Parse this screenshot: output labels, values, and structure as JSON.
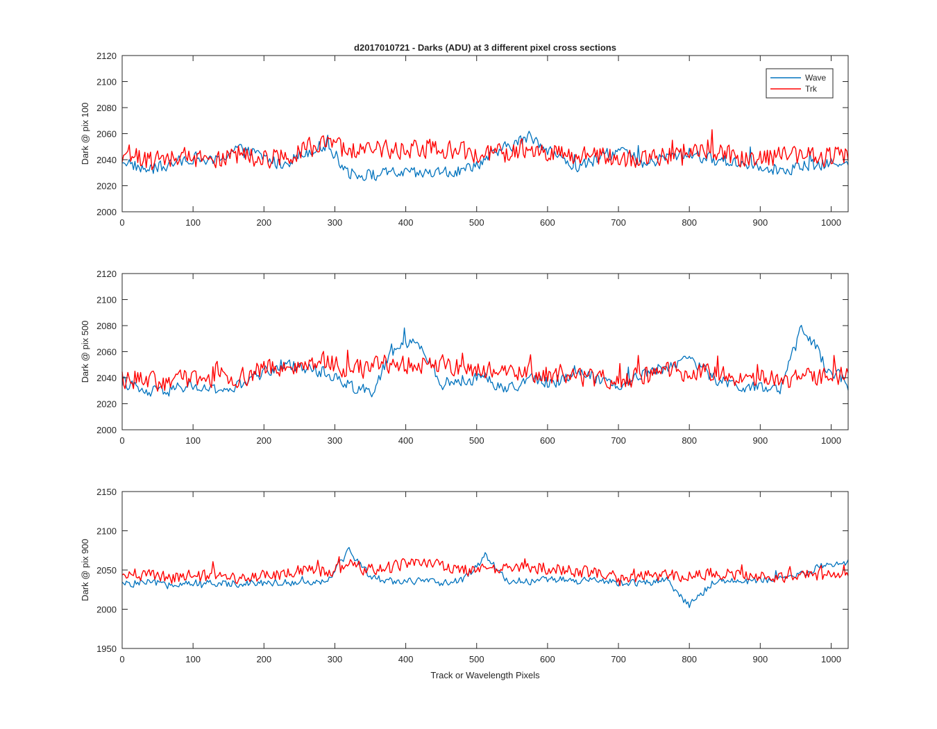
{
  "figure": {
    "title": "d2017010721 - Darks (ADU) at 3 different pixel cross sections",
    "xlabel": "Track or Wavelength Pixels",
    "legend": [
      "Wave",
      "Trk"
    ],
    "colors": {
      "Wave": "#0072BD",
      "Trk": "#FF0000"
    }
  },
  "chart_data": [
    {
      "type": "line",
      "ylabel": "Dark @ pix 100",
      "xlim": [
        0,
        1024
      ],
      "ylim": [
        2000,
        2120
      ],
      "xticks": [
        0,
        100,
        200,
        300,
        400,
        500,
        600,
        700,
        800,
        900,
        1000
      ],
      "yticks": [
        2000,
        2020,
        2040,
        2060,
        2080,
        2100,
        2120
      ],
      "legend_position": "top-right",
      "series": [
        {
          "name": "Wave",
          "x": [
            0,
            32,
            64,
            96,
            128,
            160,
            192,
            224,
            256,
            288,
            320,
            352,
            384,
            416,
            448,
            480,
            512,
            544,
            576,
            608,
            640,
            672,
            704,
            736,
            768,
            800,
            832,
            864,
            896,
            928,
            960,
            992,
            1024
          ],
          "values": [
            2040,
            2032,
            2035,
            2042,
            2038,
            2048,
            2044,
            2036,
            2045,
            2052,
            2030,
            2028,
            2030,
            2029,
            2030,
            2031,
            2040,
            2050,
            2058,
            2045,
            2034,
            2040,
            2048,
            2036,
            2042,
            2045,
            2040,
            2038,
            2036,
            2032,
            2035,
            2036,
            2040
          ]
        },
        {
          "name": "Trk",
          "x": [
            0,
            32,
            64,
            96,
            128,
            160,
            192,
            224,
            256,
            288,
            320,
            352,
            384,
            416,
            448,
            480,
            512,
            544,
            576,
            608,
            640,
            672,
            704,
            736,
            768,
            800,
            832,
            864,
            896,
            928,
            960,
            992,
            1024
          ],
          "values": [
            2045,
            2040,
            2042,
            2044,
            2040,
            2043,
            2041,
            2042,
            2048,
            2052,
            2046,
            2050,
            2046,
            2050,
            2048,
            2046,
            2044,
            2046,
            2050,
            2045,
            2042,
            2043,
            2040,
            2041,
            2044,
            2046,
            2045,
            2043,
            2041,
            2042,
            2044,
            2042,
            2044
          ]
        }
      ]
    },
    {
      "type": "line",
      "ylabel": "Dark @ pix 500",
      "xlim": [
        0,
        1024
      ],
      "ylim": [
        2000,
        2120
      ],
      "xticks": [
        0,
        100,
        200,
        300,
        400,
        500,
        600,
        700,
        800,
        900,
        1000
      ],
      "yticks": [
        2000,
        2020,
        2040,
        2060,
        2080,
        2100,
        2120
      ],
      "series": [
        {
          "name": "Wave",
          "x": [
            0,
            32,
            64,
            96,
            128,
            160,
            192,
            224,
            256,
            288,
            320,
            352,
            384,
            416,
            448,
            480,
            512,
            544,
            576,
            608,
            640,
            672,
            704,
            736,
            768,
            800,
            832,
            864,
            896,
            928,
            960,
            992,
            1024
          ],
          "values": [
            2038,
            2028,
            2030,
            2034,
            2030,
            2032,
            2042,
            2050,
            2048,
            2044,
            2034,
            2030,
            2062,
            2068,
            2035,
            2038,
            2040,
            2030,
            2040,
            2035,
            2046,
            2040,
            2034,
            2044,
            2048,
            2056,
            2040,
            2034,
            2032,
            2030,
            2080,
            2050,
            2035
          ]
        },
        {
          "name": "Trk",
          "x": [
            0,
            32,
            64,
            96,
            128,
            160,
            192,
            224,
            256,
            288,
            320,
            352,
            384,
            416,
            448,
            480,
            512,
            544,
            576,
            608,
            640,
            672,
            704,
            736,
            768,
            800,
            832,
            864,
            896,
            928,
            960,
            992,
            1024
          ],
          "values": [
            2040,
            2038,
            2036,
            2040,
            2042,
            2040,
            2044,
            2048,
            2050,
            2052,
            2046,
            2048,
            2052,
            2050,
            2050,
            2048,
            2046,
            2046,
            2044,
            2042,
            2040,
            2040,
            2038,
            2042,
            2044,
            2046,
            2044,
            2040,
            2040,
            2038,
            2040,
            2042,
            2040
          ]
        }
      ]
    },
    {
      "type": "line",
      "ylabel": "Dark @ pix 900",
      "xlabel": "Track or Wavelength Pixels",
      "xlim": [
        0,
        1024
      ],
      "ylim": [
        1950,
        2150
      ],
      "xticks": [
        0,
        100,
        200,
        300,
        400,
        500,
        600,
        700,
        800,
        900,
        1000
      ],
      "yticks": [
        1950,
        2000,
        2050,
        2100,
        2150
      ],
      "series": [
        {
          "name": "Wave",
          "x": [
            0,
            32,
            64,
            96,
            128,
            160,
            192,
            224,
            256,
            288,
            320,
            352,
            384,
            416,
            448,
            480,
            512,
            544,
            576,
            608,
            640,
            672,
            704,
            736,
            768,
            800,
            832,
            864,
            896,
            928,
            960,
            992,
            1024
          ],
          "values": [
            2032,
            2034,
            2032,
            2034,
            2032,
            2033,
            2034,
            2034,
            2034,
            2036,
            2075,
            2040,
            2036,
            2036,
            2034,
            2036,
            2068,
            2036,
            2036,
            2038,
            2036,
            2036,
            2034,
            2034,
            2036,
            2004,
            2034,
            2036,
            2036,
            2038,
            2046,
            2056,
            2060
          ]
        },
        {
          "name": "Trk",
          "x": [
            0,
            32,
            64,
            96,
            128,
            160,
            192,
            224,
            256,
            288,
            320,
            352,
            384,
            416,
            448,
            480,
            512,
            544,
            576,
            608,
            640,
            672,
            704,
            736,
            768,
            800,
            832,
            864,
            896,
            928,
            960,
            992,
            1024
          ],
          "values": [
            2042,
            2044,
            2040,
            2042,
            2042,
            2040,
            2042,
            2044,
            2050,
            2048,
            2054,
            2050,
            2056,
            2058,
            2056,
            2050,
            2050,
            2052,
            2054,
            2050,
            2048,
            2046,
            2040,
            2042,
            2044,
            2042,
            2046,
            2044,
            2042,
            2042,
            2044,
            2044,
            2042
          ]
        }
      ]
    }
  ]
}
